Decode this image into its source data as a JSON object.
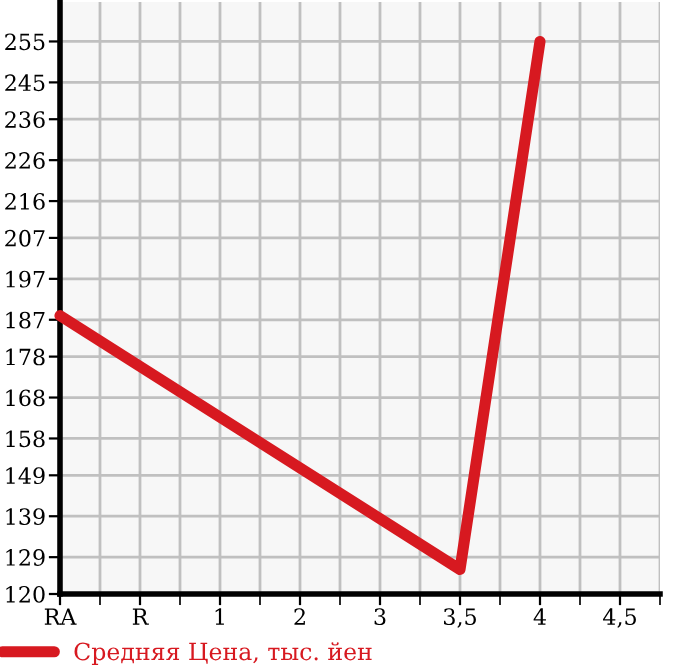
{
  "chart_data": {
    "type": "line",
    "categories": [
      "RA",
      "R",
      "1",
      "2",
      "3",
      "3,5",
      "4",
      "4,5"
    ],
    "series": [
      {
        "name": "Средняя Цена, тыс. йен",
        "color": "#d71920",
        "values": [
          188,
          null,
          null,
          null,
          null,
          126,
          255,
          null
        ]
      }
    ],
    "ylim": [
      120,
      264.64
    ],
    "yticks": [
      120,
      129,
      139,
      149,
      158,
      168,
      178,
      187,
      197,
      207,
      216,
      226,
      236,
      245,
      255
    ],
    "grid": true,
    "legend": "bottom",
    "marker": "none",
    "line_style": "solid"
  }
}
